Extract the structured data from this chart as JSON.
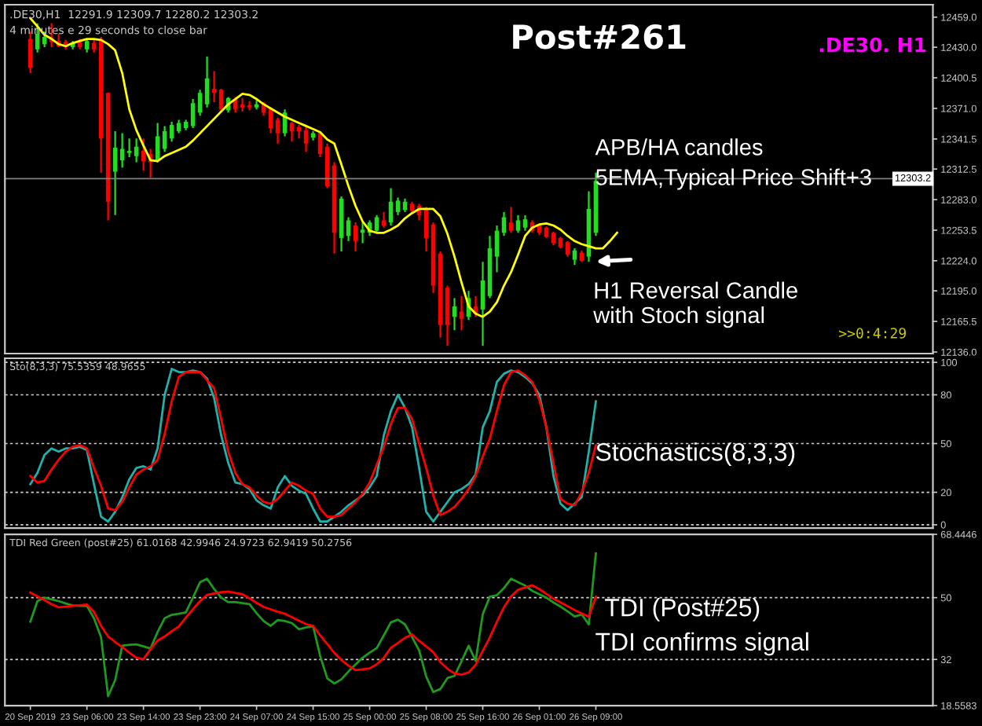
{
  "chart_data": [
    {
      "type": "candlestick",
      "title": "Post#261",
      "subtitle": ".DE30. H1",
      "categories": [
        null,
        null,
        null,
        null,
        null,
        null,
        null,
        null,
        null,
        null,
        null,
        null,
        null,
        null,
        null,
        null,
        null,
        null,
        null,
        null,
        null,
        null,
        null,
        null,
        null,
        null,
        null,
        null,
        null,
        null,
        null,
        null,
        null,
        null,
        null,
        null,
        null,
        null,
        null,
        null,
        null,
        null,
        null,
        null,
        null,
        null,
        null,
        null,
        null,
        null,
        null,
        null,
        null,
        null,
        null,
        null,
        null,
        null,
        null,
        null,
        null,
        null,
        null,
        null,
        null,
        null,
        null,
        null,
        null,
        null,
        null,
        null,
        null,
        null,
        null,
        null,
        null,
        null,
        null,
        null,
        null,
        null,
        null,
        null
      ],
      "ohlc": [
        [
          12438,
          12445,
          12405,
          12410
        ],
        [
          12428,
          12453,
          12425,
          12443
        ],
        [
          12433,
          12445,
          12430,
          12440
        ],
        [
          12439,
          12453,
          12430,
          12435
        ],
        [
          12436,
          12443,
          12430,
          12431
        ],
        [
          12435,
          12437,
          12428,
          12430
        ],
        [
          12430,
          12436,
          12428,
          12434
        ],
        [
          12435,
          12438,
          12428,
          12430
        ],
        [
          12428,
          12438,
          12425,
          12436
        ],
        [
          12434,
          12438,
          12425,
          12428
        ],
        [
          12438,
          12440,
          12309,
          12342
        ],
        [
          12386,
          12386,
          12263,
          12281
        ],
        [
          12310,
          12349,
          12268,
          12333
        ],
        [
          12321,
          12347,
          12314,
          12332
        ],
        [
          12328,
          12342,
          12324,
          12330
        ],
        [
          12325,
          12342,
          12319,
          12334
        ],
        [
          12330,
          12342,
          12311,
          12320
        ],
        [
          12327,
          12332,
          12304,
          12319
        ],
        [
          12321,
          12357,
          12319,
          12344
        ],
        [
          12332,
          12354,
          12329,
          12349
        ],
        [
          12342,
          12358,
          12339,
          12355
        ],
        [
          12349,
          12360,
          12347,
          12357
        ],
        [
          12352,
          12360,
          12350,
          12358
        ],
        [
          12354,
          12380,
          12352,
          12376
        ],
        [
          12367,
          12389,
          12364,
          12386
        ],
        [
          12375,
          12421,
          12372,
          12400
        ],
        [
          12390,
          12407,
          12377,
          12386
        ],
        [
          12389,
          12390,
          12367,
          12370
        ],
        [
          12369,
          12382,
          12367,
          12381
        ],
        [
          12380,
          12382,
          12367,
          12370
        ],
        [
          12375,
          12381,
          12368,
          12372
        ],
        [
          12374,
          12378,
          12369,
          12372
        ],
        [
          12372,
          12379,
          12370,
          12375
        ],
        [
          12376,
          12377,
          12364,
          12367
        ],
        [
          12371,
          12372,
          12347,
          12352
        ],
        [
          12360,
          12362,
          12337,
          12347
        ],
        [
          12347,
          12370,
          12344,
          12367
        ],
        [
          12357,
          12358,
          12339,
          12349
        ],
        [
          12353,
          12355,
          12342,
          12349
        ],
        [
          12350,
          12354,
          12329,
          12337
        ],
        [
          12343,
          12349,
          12340,
          12347
        ],
        [
          12347,
          12349,
          12324,
          12327
        ],
        [
          12334,
          12337,
          12294,
          12296
        ],
        [
          12316,
          12319,
          12231,
          12251
        ],
        [
          12246,
          12286,
          12233,
          12284
        ],
        [
          12248,
          12266,
          12243,
          12263
        ],
        [
          12258,
          12261,
          12233,
          12243
        ],
        [
          12251,
          12261,
          12241,
          12254
        ],
        [
          12251,
          12263,
          12248,
          12261
        ],
        [
          12253,
          12268,
          12251,
          12266
        ],
        [
          12263,
          12271,
          12256,
          12258
        ],
        [
          12261,
          12294,
          12258,
          12281
        ],
        [
          12271,
          12285,
          12268,
          12282
        ],
        [
          12273,
          12284,
          12271,
          12281
        ],
        [
          12279,
          12281,
          12269,
          12272
        ],
        [
          12277,
          12279,
          12263,
          12268
        ],
        [
          12274,
          12276,
          12233,
          12246
        ],
        [
          12259,
          12261,
          12193,
          12200
        ],
        [
          12231,
          12233,
          12150,
          12162
        ],
        [
          12198,
          12200,
          12142,
          12162
        ],
        [
          12170,
          12188,
          12157,
          12180
        ],
        [
          12175,
          12190,
          12157,
          12168
        ],
        [
          12170,
          12195,
          12167,
          12188
        ],
        [
          12180,
          12190,
          12170,
          12173
        ],
        [
          12177,
          12223,
          12142,
          12205
        ],
        [
          12190,
          12248,
          12188,
          12236
        ],
        [
          12228,
          12258,
          12213,
          12253
        ],
        [
          12251,
          12271,
          12248,
          12266
        ],
        [
          12261,
          12276,
          12251,
          12253
        ],
        [
          12253,
          12268,
          12251,
          12263
        ],
        [
          12256,
          12268,
          12253,
          12264
        ],
        [
          12261,
          12263,
          12251,
          12253
        ],
        [
          12258,
          12259,
          12249,
          12251
        ],
        [
          12256,
          12257,
          12246,
          12247
        ],
        [
          12251,
          12252,
          12239,
          12241
        ],
        [
          12246,
          12247,
          12236,
          12237
        ],
        [
          12242,
          12243,
          12228,
          12230
        ],
        [
          12225,
          12236,
          12220,
          12234
        ],
        [
          12232,
          12234,
          12223,
          12224
        ],
        [
          12228,
          12291,
          12223,
          12274
        ],
        [
          12251,
          12309,
          12248,
          12301
        ],
        null,
        null,
        null
      ],
      "colors": [
        "#ff0000",
        "#22dd22",
        "#22dd22",
        "#ff0000",
        "#ff0000",
        "#ff0000",
        "#22dd22",
        "#ff0000",
        "#22dd22",
        "#ff0000",
        "#ff0000",
        "#ff0000",
        "#22dd22",
        "#22dd22",
        "#22dd22",
        "#22dd22",
        "#ff0000",
        "#ff0000",
        "#22dd22",
        "#22dd22",
        "#22dd22",
        "#22dd22",
        "#22dd22",
        "#22dd22",
        "#22dd22",
        "#22dd22",
        "#ff0000",
        "#ff0000",
        "#22dd22",
        "#ff0000",
        "#ff0000",
        "#ff0000",
        "#22dd22",
        "#ff0000",
        "#ff0000",
        "#ff0000",
        "#22dd22",
        "#ff0000",
        "#ff0000",
        "#ff0000",
        "#22dd22",
        "#ff0000",
        "#ff0000",
        "#ff0000",
        "#22dd22",
        "#22dd22",
        "#ff0000",
        "#22dd22",
        "#22dd22",
        "#22dd22",
        "#ff0000",
        "#22dd22",
        "#22dd22",
        "#22dd22",
        "#ff0000",
        "#ff0000",
        "#ff0000",
        "#ff0000",
        "#ff0000",
        "#ff0000",
        "#22dd22",
        "#ff0000",
        "#22dd22",
        "#ff0000",
        "#22dd22",
        "#22dd22",
        "#22dd22",
        "#22dd22",
        "#ff0000",
        "#22dd22",
        "#22dd22",
        "#ff0000",
        "#ff0000",
        "#ff0000",
        "#ff0000",
        "#ff0000",
        "#ff0000",
        "#22dd22",
        "#ff0000",
        "#22dd22",
        "#22dd22",
        null,
        null,
        null
      ],
      "series": [
        {
          "type": "line",
          "color": "#ffff00",
          "values": [
            12458,
            12450,
            12442,
            12438,
            12433,
            12431,
            12434,
            12436,
            12438,
            12438,
            12437,
            12433,
            12427,
            12405,
            12370,
            12350,
            12335,
            12321,
            12320,
            12325,
            12328,
            12331,
            12334,
            12340,
            12347,
            12354,
            12361,
            12368,
            12375,
            12380,
            12385,
            12384,
            12380,
            12375,
            12371,
            12367,
            12363,
            12360,
            12357,
            12354,
            12351,
            12348,
            12341,
            12337,
            12317,
            12296,
            12277,
            12262,
            12253,
            12251,
            12251,
            12254,
            12258,
            12265,
            12270,
            12274,
            12274,
            12274,
            12267,
            12250,
            12228,
            12203,
            12180,
            12173,
            12170,
            12175,
            12184,
            12200,
            12213,
            12230,
            12248,
            12256,
            12259,
            12260,
            12258,
            12254,
            12248,
            12243,
            12240,
            12238,
            12236,
            12236,
            12243,
            12251
          ]
        }
      ],
      "ylim": [
        12134.5,
        12471
      ],
      "yticks": [
        {
          "value": 12459,
          "label": "12459.0"
        },
        {
          "value": 12430,
          "label": "12430.0"
        },
        {
          "value": 12400.5,
          "label": "12400.5"
        },
        {
          "value": 12371,
          "label": "12371.0"
        },
        {
          "value": 12341.5,
          "label": "12341.5"
        },
        {
          "value": 12312.5,
          "label": "12312.5"
        },
        {
          "value": 12283,
          "label": "12283.0"
        },
        {
          "value": 12253.5,
          "label": "12253.5"
        },
        {
          "value": 12224,
          "label": "12224.0"
        },
        {
          "value": 12195,
          "label": "12195.0"
        },
        {
          "value": 12165.5,
          "label": "12165.5"
        },
        {
          "value": 12136,
          "label": "12136.0"
        }
      ],
      "ref_lines": [
        {
          "axis": "y",
          "value": 12303.2,
          "label": "12303.2",
          "color": "#808080"
        }
      ],
      "annotations": [
        ".DE30,H1  12291.9 12309.7 12280.2 12303.2",
        "4 minutes e 29 seconds to close bar",
        "APB/HA candles",
        "5EMA,Typical Price Shift+3",
        "H1 Reversal Candle\nwith Stoch signal",
        ">>0:4:29"
      ],
      "tick_labels": "y"
    },
    {
      "type": "line",
      "title": "Sto(8,3,3) 75.5359 48.9655",
      "categories": [
        null,
        null,
        null,
        null,
        null,
        null,
        null,
        null,
        null,
        null,
        null,
        null,
        null,
        null,
        null,
        null,
        null,
        null,
        null,
        null,
        null,
        null,
        null,
        null,
        null,
        null,
        null,
        null,
        null,
        null,
        null,
        null,
        null,
        null,
        null,
        null,
        null,
        null,
        null,
        null,
        null,
        null,
        null,
        null,
        null,
        null,
        null,
        null,
        null,
        null,
        null,
        null,
        null,
        null,
        null,
        null,
        null,
        null,
        null,
        null,
        null,
        null,
        null,
        null,
        null,
        null,
        null,
        null,
        null,
        null,
        null,
        null,
        null,
        null,
        null,
        null,
        null,
        null,
        null,
        null,
        null,
        null,
        null,
        null
      ],
      "series": [
        {
          "color": "#20b2aa",
          "values": [
            25,
            32,
            43,
            47,
            45,
            47,
            47,
            48,
            46,
            25,
            5,
            2,
            8,
            17,
            28,
            35,
            36,
            34,
            47,
            80,
            96,
            94,
            94,
            95,
            94,
            90,
            78,
            55,
            38,
            26,
            25,
            22,
            15,
            12,
            10,
            23,
            30,
            24,
            21,
            19,
            10,
            2,
            2,
            5,
            8,
            12,
            15,
            18,
            23,
            30,
            55,
            70,
            80,
            72,
            60,
            35,
            8,
            2,
            8,
            14,
            20,
            22,
            25,
            31,
            60,
            70,
            88,
            93,
            95,
            94,
            91,
            87,
            80,
            60,
            30,
            13,
            9,
            13,
            17,
            45,
            76,
            null,
            null,
            null
          ]
        },
        {
          "color": "#ff0000",
          "values": [
            30,
            26,
            27,
            34,
            40,
            45,
            48,
            49,
            47,
            35,
            24,
            10,
            9,
            14,
            23,
            31,
            34,
            36,
            40,
            56,
            76,
            91,
            94,
            94,
            94,
            89,
            84,
            65,
            45,
            32,
            25,
            23,
            18,
            14,
            13,
            16,
            21,
            26,
            24,
            21,
            19,
            10,
            5,
            5,
            6,
            10,
            14,
            19,
            26,
            37,
            48,
            62,
            72,
            72,
            65,
            50,
            35,
            18,
            6,
            8,
            11,
            16,
            22,
            30,
            42,
            53,
            70,
            86,
            94,
            95,
            92,
            88,
            77,
            60,
            38,
            16,
            13,
            12,
            20,
            32,
            49,
            null,
            null,
            null
          ]
        }
      ],
      "ylim": [
        -2,
        102.5
      ],
      "yticks": [
        0,
        20,
        50,
        80,
        100
      ],
      "grid": "y",
      "annotations": [
        "Stochastics(8,3,3)"
      ],
      "tick_labels": "y"
    },
    {
      "type": "line",
      "title": "TDI Red Green (post#25) 61.0168 42.9946 24.9723 62.9419 50.2756",
      "categories": [
        "20 Sep 2019",
        null,
        null,
        null,
        null,
        null,
        null,
        null,
        "23 Sep 06:00",
        null,
        null,
        null,
        null,
        null,
        null,
        null,
        "23 Sep 14:00",
        null,
        null,
        null,
        null,
        null,
        null,
        null,
        "23 Sep 23:00",
        null,
        null,
        null,
        null,
        null,
        null,
        null,
        "24 Sep 07:00",
        null,
        null,
        null,
        null,
        null,
        null,
        null,
        "24 Sep 15:00",
        null,
        null,
        null,
        null,
        null,
        null,
        null,
        "25 Sep 00:00",
        null,
        null,
        null,
        null,
        null,
        null,
        null,
        "25 Sep 08:00",
        null,
        null,
        null,
        null,
        null,
        null,
        null,
        "25 Sep 16:00",
        null,
        null,
        null,
        null,
        null,
        null,
        null,
        "26 Sep 01:00",
        null,
        null,
        null,
        null,
        null,
        null,
        null,
        "26 Sep 09:00",
        null,
        null,
        null
      ],
      "series": [
        {
          "color": "#1f9a1f",
          "values": [
            43,
            49,
            50,
            49.5,
            49,
            48.3,
            47.7,
            47.6,
            47.6,
            44,
            38.5,
            21.3,
            26,
            36,
            36.3,
            36.4,
            35.8,
            35.2,
            40,
            44,
            45,
            45.3,
            45.7,
            50,
            54.5,
            55.5,
            52.5,
            50,
            48.7,
            48.7,
            48.4,
            48.1,
            45.5,
            43.2,
            41.8,
            43.5,
            43.2,
            42.6,
            40.8,
            41.3,
            41.7,
            33,
            26.5,
            25,
            26.2,
            28.5,
            30.5,
            32.5,
            34,
            35.3,
            39,
            42.8,
            43.6,
            42.2,
            38.5,
            34.6,
            27,
            22.5,
            23.4,
            26.6,
            27.2,
            31.5,
            36,
            31.6,
            45.2,
            50.3,
            50.7,
            52.8,
            55.5,
            54.5,
            53.5,
            52,
            51,
            50,
            48.6,
            47.4,
            46,
            44.5,
            45.1,
            42.2,
            62.9,
            null,
            null,
            null
          ]
        },
        {
          "color": "#ff0000",
          "values": [
            51.5,
            50.4,
            49.3,
            48.1,
            47.2,
            47.4,
            47.6,
            47.8,
            48,
            45.8,
            41.8,
            38.7,
            37.1,
            35.6,
            34,
            32.5,
            32.1,
            35,
            37.5,
            38.7,
            40.2,
            41.6,
            44.2,
            46.6,
            49,
            50.8,
            51.2,
            51.6,
            51.8,
            51.4,
            51,
            49.8,
            48.5,
            47.3,
            46.6,
            45.9,
            45.3,
            44.3,
            43.3,
            42.3,
            41.8,
            39,
            36.5,
            33.9,
            31.8,
            30.2,
            28.9,
            29.1,
            29.4,
            30.6,
            32.5,
            35.4,
            36.8,
            38.3,
            39.3,
            37.4,
            35.8,
            34.1,
            31.2,
            29.3,
            27.9,
            27.6,
            28.2,
            30.5,
            34.5,
            38.4,
            43,
            47.2,
            50.4,
            52.3,
            53,
            53.6,
            52.5,
            51.1,
            49.7,
            48.6,
            47.5,
            46.4,
            45.4,
            44.4,
            50.3,
            null,
            null,
            null
          ]
        }
      ],
      "ylim": [
        18.5583,
        68.4446
      ],
      "yticks": [
        18.5583,
        32,
        50,
        68.4446
      ],
      "grid": "y",
      "annotations": [
        "TDI (Post#25)",
        "TDI confirms signal"
      ]
    }
  ]
}
